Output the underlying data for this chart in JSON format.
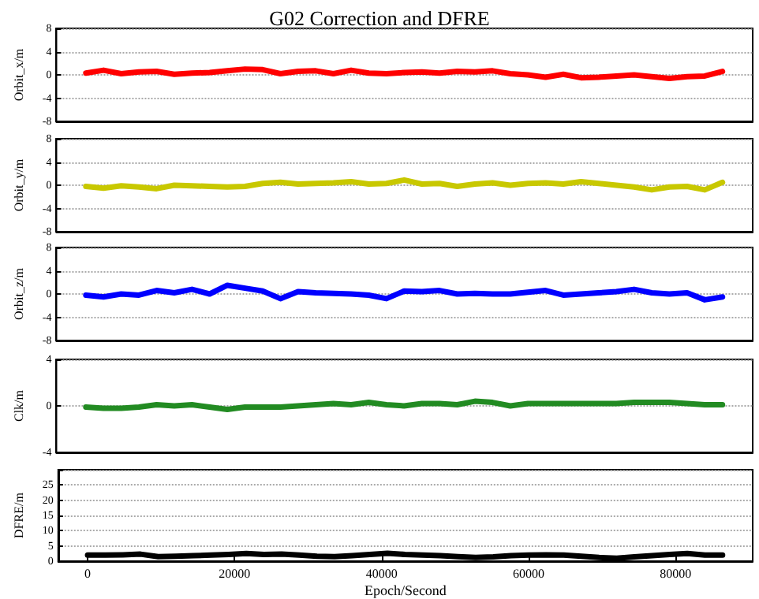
{
  "chart_data": [
    {
      "type": "line",
      "title": "G02 Correction and DFRE",
      "ylabel": "Orbit_x/m",
      "x": [
        0,
        2400,
        4800,
        7200,
        9600,
        12000,
        14400,
        16800,
        19200,
        21600,
        24000,
        26400,
        28800,
        31200,
        33600,
        36000,
        38400,
        40800,
        43200,
        45600,
        48000,
        50400,
        52800,
        55200,
        57600,
        60000,
        62400,
        64800,
        67200,
        69600,
        72000,
        74400,
        76800,
        79200,
        81600,
        84000,
        86400
      ],
      "series": [
        {
          "color": "#ff0000",
          "values": [
            0.3,
            0.8,
            0.2,
            0.5,
            0.6,
            0.1,
            0.3,
            0.4,
            0.7,
            1.0,
            0.9,
            0.2,
            0.6,
            0.7,
            0.2,
            0.8,
            0.3,
            0.2,
            0.4,
            0.5,
            0.3,
            0.6,
            0.5,
            0.7,
            0.2,
            0.0,
            -0.4,
            0.1,
            -0.5,
            -0.4,
            -0.2,
            0.0,
            -0.3,
            -0.6,
            -0.3,
            -0.2,
            0.6
          ]
        }
      ],
      "xlim": [
        -4000,
        90500
      ],
      "ylim": [
        -8,
        8
      ],
      "yticks": [
        -8,
        -4,
        0,
        4,
        8
      ],
      "grid": "y",
      "tick_labels": "y",
      "line_style": "solid"
    },
    {
      "type": "line",
      "ylabel": "Orbit_y/m",
      "x": [
        0,
        2400,
        4800,
        7200,
        9600,
        12000,
        14400,
        16800,
        19200,
        21600,
        24000,
        26400,
        28800,
        31200,
        33600,
        36000,
        38400,
        40800,
        43200,
        45600,
        48000,
        50400,
        52800,
        55200,
        57600,
        60000,
        62400,
        64800,
        67200,
        69600,
        72000,
        74400,
        76800,
        79200,
        81600,
        84000,
        86400
      ],
      "series": [
        {
          "color": "#c8c800",
          "values": [
            -0.2,
            -0.5,
            -0.1,
            -0.3,
            -0.6,
            0.0,
            -0.1,
            -0.2,
            -0.3,
            -0.2,
            0.3,
            0.5,
            0.2,
            0.3,
            0.4,
            0.6,
            0.2,
            0.3,
            0.9,
            0.2,
            0.3,
            -0.2,
            0.2,
            0.4,
            0.0,
            0.3,
            0.4,
            0.2,
            0.6,
            0.3,
            0.0,
            -0.3,
            -0.8,
            -0.3,
            -0.2,
            -0.8,
            0.5
          ]
        }
      ],
      "xlim": [
        -4000,
        90500
      ],
      "ylim": [
        -8,
        8
      ],
      "yticks": [
        -8,
        -4,
        0,
        4,
        8
      ],
      "grid": "y",
      "tick_labels": "y",
      "line_style": "solid"
    },
    {
      "type": "line",
      "ylabel": "Orbit_z/m",
      "x": [
        0,
        2400,
        4800,
        7200,
        9600,
        12000,
        14400,
        16800,
        19200,
        21600,
        24000,
        26400,
        28800,
        31200,
        33600,
        36000,
        38400,
        40800,
        43200,
        45600,
        48000,
        50400,
        52800,
        55200,
        57600,
        60000,
        62400,
        64800,
        67200,
        69600,
        72000,
        74400,
        76800,
        79200,
        81600,
        84000,
        86400
      ],
      "series": [
        {
          "color": "#0000ff",
          "values": [
            -0.2,
            -0.5,
            0.0,
            -0.2,
            0.6,
            0.2,
            0.8,
            0.0,
            1.5,
            1.0,
            0.5,
            -0.8,
            0.4,
            0.2,
            0.1,
            0.0,
            -0.2,
            -0.8,
            0.5,
            0.4,
            0.6,
            0.0,
            0.1,
            0.0,
            0.0,
            0.3,
            0.6,
            -0.2,
            0.0,
            0.2,
            0.4,
            0.8,
            0.2,
            0.0,
            0.2,
            -1.0,
            -0.5
          ]
        }
      ],
      "xlim": [
        -4000,
        90500
      ],
      "ylim": [
        -8,
        8
      ],
      "yticks": [
        -8,
        -4,
        0,
        4,
        8
      ],
      "grid": "y",
      "tick_labels": "y",
      "line_style": "solid"
    },
    {
      "type": "line",
      "ylabel": "Clk/m",
      "x": [
        0,
        2400,
        4800,
        7200,
        9600,
        12000,
        14400,
        16800,
        19200,
        21600,
        24000,
        26400,
        28800,
        31200,
        33600,
        36000,
        38400,
        40800,
        43200,
        45600,
        48000,
        50400,
        52800,
        55200,
        57600,
        60000,
        62400,
        64800,
        67200,
        69600,
        72000,
        74400,
        76800,
        79200,
        81600,
        84000,
        86400
      ],
      "series": [
        {
          "color": "#228b22",
          "values": [
            -0.1,
            -0.2,
            -0.2,
            -0.1,
            0.1,
            0.0,
            0.1,
            -0.1,
            -0.3,
            -0.1,
            -0.1,
            -0.1,
            0.0,
            0.1,
            0.2,
            0.1,
            0.3,
            0.1,
            0.0,
            0.2,
            0.2,
            0.1,
            0.4,
            0.3,
            0.0,
            0.2,
            0.2,
            0.2,
            0.2,
            0.2,
            0.2,
            0.3,
            0.3,
            0.3,
            0.2,
            0.1,
            0.1
          ]
        }
      ],
      "xlim": [
        -4000,
        90500
      ],
      "ylim": [
        -4,
        4
      ],
      "yticks": [
        -4,
        0,
        4
      ],
      "grid": "y",
      "tick_labels": "y",
      "line_style": "solid"
    },
    {
      "type": "line",
      "ylabel": "DFRE/m",
      "xlabel": "Epoch/Second",
      "x": [
        0,
        2400,
        4800,
        7200,
        9600,
        12000,
        14400,
        16800,
        19200,
        21600,
        24000,
        26400,
        28800,
        31200,
        33600,
        36000,
        38400,
        40800,
        43200,
        45600,
        48000,
        50400,
        52800,
        55200,
        57600,
        60000,
        62400,
        64800,
        67200,
        69600,
        72000,
        74400,
        76800,
        79200,
        81600,
        84000,
        86400
      ],
      "series": [
        {
          "color": "#000000",
          "values": [
            2.0,
            2.0,
            2.1,
            2.3,
            1.5,
            1.6,
            1.8,
            2.0,
            2.2,
            2.5,
            2.2,
            2.3,
            2.0,
            1.6,
            1.5,
            1.8,
            2.2,
            2.6,
            2.2,
            2.0,
            1.8,
            1.5,
            1.2,
            1.4,
            1.8,
            2.0,
            2.1,
            2.0,
            1.6,
            1.2,
            1.0,
            1.4,
            1.8,
            2.2,
            2.5,
            2.0,
            2.0
          ]
        }
      ],
      "xlim": [
        -4000,
        90500
      ],
      "xticks": [
        0,
        20000,
        40000,
        60000,
        80000
      ],
      "ylim": [
        0,
        30
      ],
      "yticks": [
        0,
        5,
        10,
        15,
        20,
        25,
        {
          "value": 30,
          "label": null
        }
      ],
      "grid": "y",
      "line_style": "solid"
    }
  ]
}
